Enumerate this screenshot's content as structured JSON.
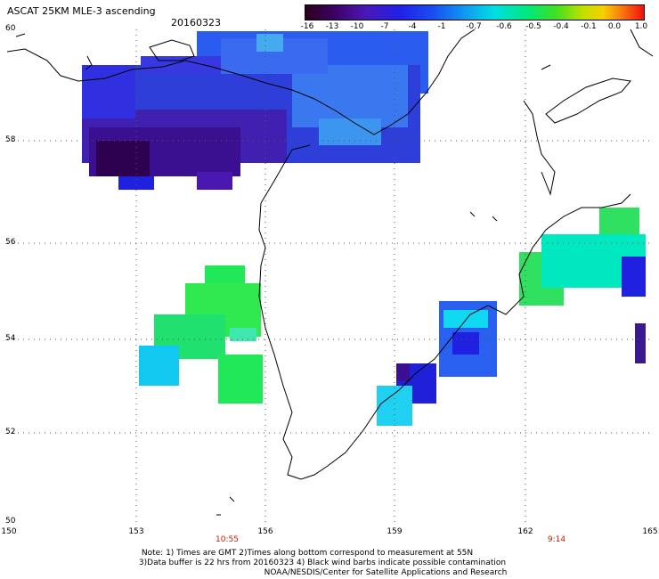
{
  "header": {
    "title": "ASCAT 25KM MLE-3 ascending",
    "date": "20160323"
  },
  "legend": {
    "labels": [
      "-16",
      "-13",
      "-10",
      "-7",
      "-4",
      "-1",
      "-0.7",
      "-0.6",
      "-0.5",
      "-0.4",
      "-0.1",
      "0.0",
      "1.0"
    ]
  },
  "axes": {
    "lat_labels": [
      "60",
      "58",
      "56",
      "54",
      "52",
      "50"
    ],
    "lon_labels": [
      "150",
      "153",
      "156",
      "159",
      "162",
      "165"
    ]
  },
  "times": {
    "left": "10:55",
    "right": "9:14"
  },
  "notes": {
    "line1": "Note: 1) Times are GMT 2)Times along bottom correspond to measurement at 55N",
    "line2": "3)Data buffer is 22 hrs from 20160323 4) Black wind barbs indicate possible contamination",
    "line3": "NOAA/NESDIS/Center for Satellite Applications and Research"
  }
}
